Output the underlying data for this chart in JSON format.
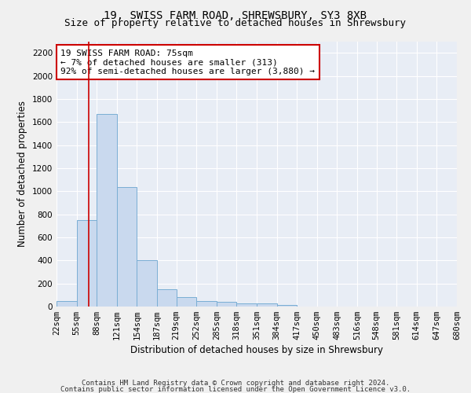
{
  "title_line1": "19, SWISS FARM ROAD, SHREWSBURY, SY3 8XB",
  "title_line2": "Size of property relative to detached houses in Shrewsbury",
  "xlabel": "Distribution of detached houses by size in Shrewsbury",
  "ylabel": "Number of detached properties",
  "footer_line1": "Contains HM Land Registry data © Crown copyright and database right 2024.",
  "footer_line2": "Contains public sector information licensed under the Open Government Licence v3.0.",
  "annotation_line1": "19 SWISS FARM ROAD: 75sqm",
  "annotation_line2": "← 7% of detached houses are smaller (313)",
  "annotation_line3": "92% of semi-detached houses are larger (3,880) →",
  "bin_edges": [
    22,
    55,
    88,
    121,
    154,
    187,
    219,
    252,
    285,
    318,
    351,
    384,
    417,
    450,
    483,
    516,
    548,
    581,
    614,
    647,
    680
  ],
  "bar_heights": [
    50,
    750,
    1670,
    1035,
    405,
    150,
    85,
    50,
    40,
    30,
    25,
    15,
    0,
    0,
    0,
    0,
    0,
    0,
    0,
    0
  ],
  "bar_color": "#c9d9ee",
  "bar_edge_color": "#7aaed4",
  "red_line_x": 75,
  "ylim": [
    0,
    2300
  ],
  "yticks": [
    0,
    200,
    400,
    600,
    800,
    1000,
    1200,
    1400,
    1600,
    1800,
    2000,
    2200
  ],
  "annotation_box_facecolor": "#ffffff",
  "annotation_box_edgecolor": "#cc0000",
  "red_line_color": "#cc0000",
  "plot_bg_color": "#e8edf5",
  "fig_bg_color": "#f0f0f0",
  "grid_color": "#ffffff",
  "title_fontsize": 10,
  "subtitle_fontsize": 9,
  "axis_label_fontsize": 8.5,
  "tick_fontsize": 7.5,
  "annotation_fontsize": 8,
  "footer_fontsize": 6.5
}
